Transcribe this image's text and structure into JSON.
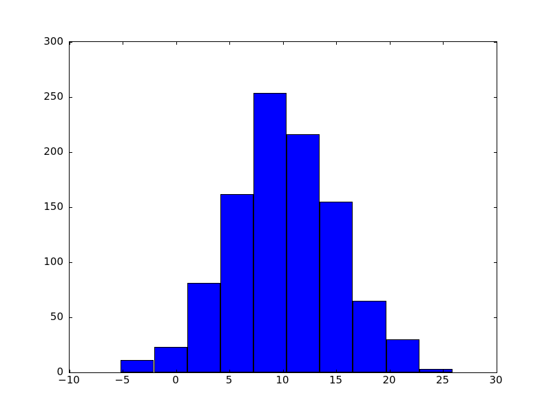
{
  "chart_data": {
    "type": "bar",
    "subtype": "histogram",
    "title": "",
    "xlabel": "",
    "ylabel": "",
    "bin_edges": [
      -5.21,
      -2.1,
      1.01,
      4.11,
      7.22,
      10.33,
      13.44,
      16.54,
      19.65,
      22.76,
      25.87
    ],
    "counts": [
      11,
      23,
      81,
      162,
      254,
      216,
      155,
      65,
      30,
      3
    ],
    "xlim": [
      -10,
      30
    ],
    "ylim": [
      0,
      300
    ],
    "x_ticks": [
      -10,
      -5,
      0,
      5,
      10,
      15,
      20,
      25,
      30
    ],
    "y_ticks": [
      0,
      50,
      100,
      150,
      200,
      250,
      300
    ],
    "x_tick_labels": [
      "−10",
      "−5",
      "0",
      "5",
      "10",
      "15",
      "20",
      "25",
      "30"
    ],
    "y_tick_labels": [
      "0",
      "50",
      "100",
      "150",
      "200",
      "250",
      "300"
    ],
    "grid": false,
    "legend": "none",
    "tick_direction": "in",
    "bar_color": "#0000ff",
    "bar_edge_color": "#000000",
    "axes_color": "#000000",
    "background_color": "#ffffff"
  }
}
